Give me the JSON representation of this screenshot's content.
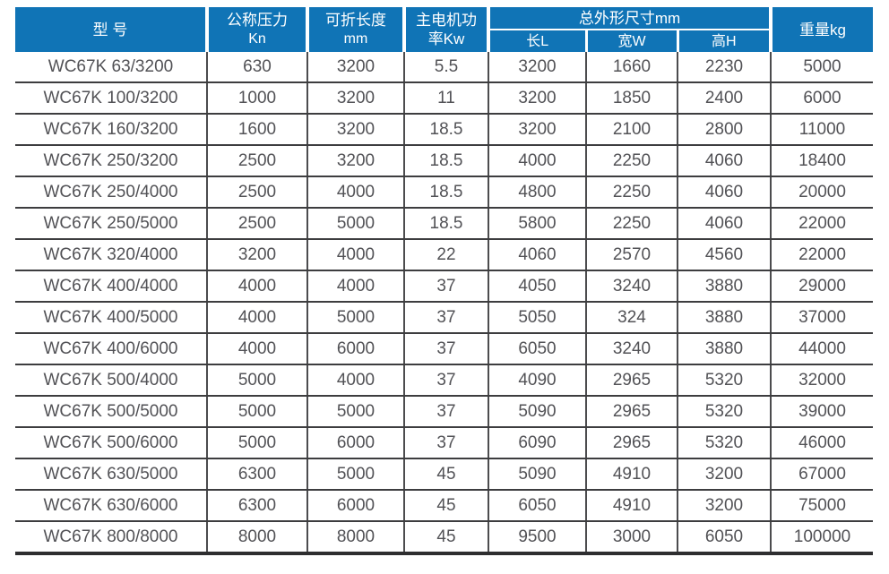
{
  "colors": {
    "header_bg": "#1074b6",
    "header_text": "#ffffff",
    "body_text": "#525256",
    "grid_line_horizontal": "#3d3d3f",
    "grid_line_vertical": "#4c4c4e"
  },
  "table": {
    "header": {
      "col_model": "型 号",
      "col_pressure_line1": "公称压力",
      "col_pressure_line2": "Kn",
      "col_fold_length_line1": "可折长度",
      "col_fold_length_line2": "mm",
      "col_power_line1": "主电机功",
      "col_power_line2": "率Kw",
      "col_dimensions_group": "总外形尺寸mm",
      "col_dim_length": "长L",
      "col_dim_width": "宽W",
      "col_dim_height": "高H",
      "col_weight": "重量kg"
    },
    "row_keys": [
      "model",
      "pressure_kn",
      "fold_length_mm",
      "power_kw",
      "length_l",
      "width_w",
      "height_h",
      "weight_kg"
    ],
    "rows": [
      {
        "model": "WC67K 63/3200",
        "pressure_kn": "630",
        "fold_length_mm": "3200",
        "power_kw": "5.5",
        "length_l": "3200",
        "width_w": "1660",
        "height_h": "2230",
        "weight_kg": "5000"
      },
      {
        "model": "WC67K 100/3200",
        "pressure_kn": "1000",
        "fold_length_mm": "3200",
        "power_kw": "11",
        "length_l": "3200",
        "width_w": "1850",
        "height_h": "2400",
        "weight_kg": "6000"
      },
      {
        "model": "WC67K 160/3200",
        "pressure_kn": "1600",
        "fold_length_mm": "3200",
        "power_kw": "18.5",
        "length_l": "3200",
        "width_w": "2100",
        "height_h": "2800",
        "weight_kg": "11000"
      },
      {
        "model": "WC67K 250/3200",
        "pressure_kn": "2500",
        "fold_length_mm": "3200",
        "power_kw": "18.5",
        "length_l": "4000",
        "width_w": "2250",
        "height_h": "4060",
        "weight_kg": "18400"
      },
      {
        "model": "WC67K 250/4000",
        "pressure_kn": "2500",
        "fold_length_mm": "4000",
        "power_kw": "18.5",
        "length_l": "4800",
        "width_w": "2250",
        "height_h": "4060",
        "weight_kg": "20000"
      },
      {
        "model": "WC67K 250/5000",
        "pressure_kn": "2500",
        "fold_length_mm": "5000",
        "power_kw": "18.5",
        "length_l": "5800",
        "width_w": "2250",
        "height_h": "4060",
        "weight_kg": "22000"
      },
      {
        "model": "WC67K 320/4000",
        "pressure_kn": "3200",
        "fold_length_mm": "4000",
        "power_kw": "22",
        "length_l": "4060",
        "width_w": "2570",
        "height_h": "4560",
        "weight_kg": "22000"
      },
      {
        "model": "WC67K 400/4000",
        "pressure_kn": "4000",
        "fold_length_mm": "4000",
        "power_kw": "37",
        "length_l": "4050",
        "width_w": "3240",
        "height_h": "3880",
        "weight_kg": "29000"
      },
      {
        "model": "WC67K 400/5000",
        "pressure_kn": "4000",
        "fold_length_mm": "5000",
        "power_kw": "37",
        "length_l": "5050",
        "width_w": "324",
        "height_h": "3880",
        "weight_kg": "37000"
      },
      {
        "model": "WC67K 400/6000",
        "pressure_kn": "4000",
        "fold_length_mm": "6000",
        "power_kw": "37",
        "length_l": "6050",
        "width_w": "3240",
        "height_h": "3880",
        "weight_kg": "44000"
      },
      {
        "model": "WC67K 500/4000",
        "pressure_kn": "5000",
        "fold_length_mm": "4000",
        "power_kw": "37",
        "length_l": "4090",
        "width_w": "2965",
        "height_h": "5320",
        "weight_kg": "32000"
      },
      {
        "model": "WC67K 500/5000",
        "pressure_kn": "5000",
        "fold_length_mm": "5000",
        "power_kw": "37",
        "length_l": "5090",
        "width_w": "2965",
        "height_h": "5320",
        "weight_kg": "39000"
      },
      {
        "model": "WC67K 500/6000",
        "pressure_kn": "5000",
        "fold_length_mm": "6000",
        "power_kw": "37",
        "length_l": "6090",
        "width_w": "2965",
        "height_h": "5320",
        "weight_kg": "46000"
      },
      {
        "model": "WC67K 630/5000",
        "pressure_kn": "6300",
        "fold_length_mm": "5000",
        "power_kw": "45",
        "length_l": "5090",
        "width_w": "4910",
        "height_h": "3200",
        "weight_kg": "67000"
      },
      {
        "model": "WC67K 630/6000",
        "pressure_kn": "6300",
        "fold_length_mm": "6000",
        "power_kw": "45",
        "length_l": "6050",
        "width_w": "4910",
        "height_h": "3200",
        "weight_kg": "75000"
      },
      {
        "model": "WC67K 800/8000",
        "pressure_kn": "8000",
        "fold_length_mm": "8000",
        "power_kw": "45",
        "length_l": "9500",
        "width_w": "3000",
        "height_h": "6050",
        "weight_kg": "100000"
      }
    ]
  }
}
